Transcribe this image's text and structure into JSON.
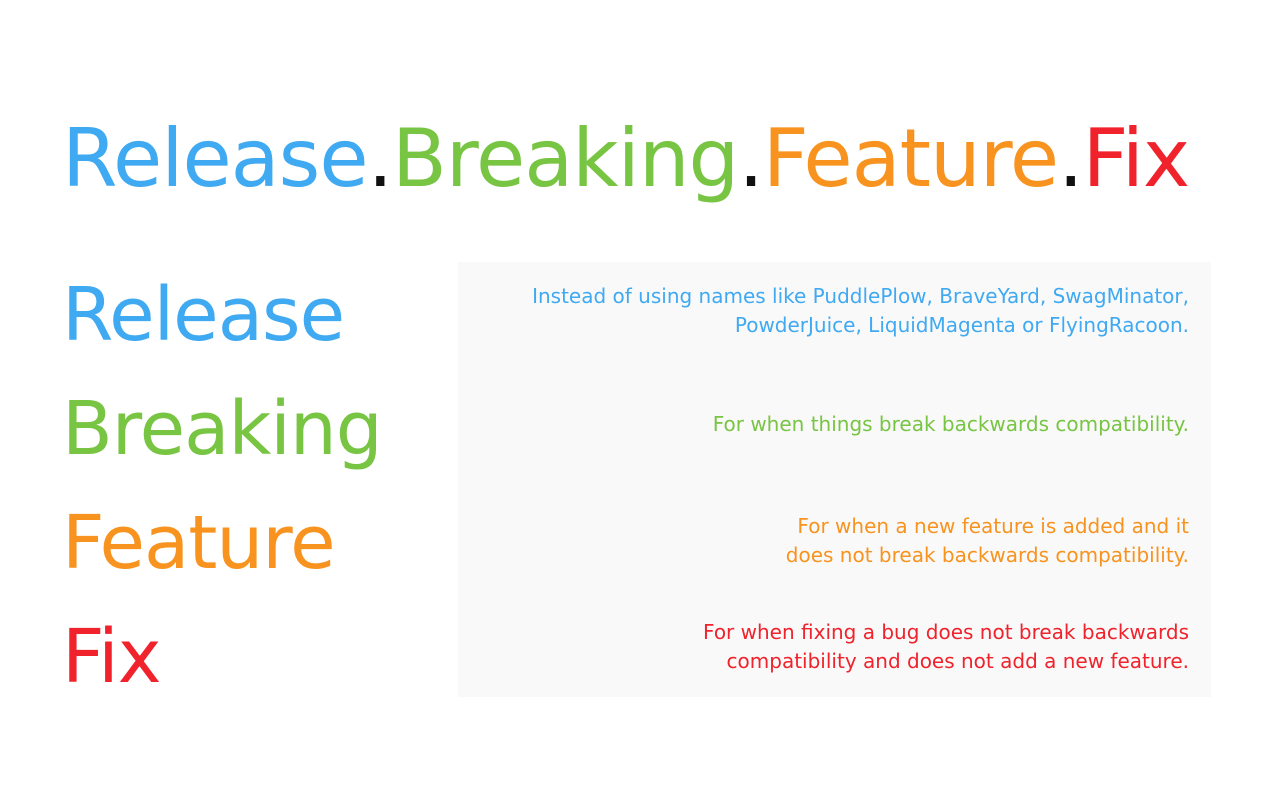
{
  "colors": {
    "release": "#3fa9f1",
    "breaking": "#78c443",
    "feature": "#f7931e",
    "fix": "#f0222c",
    "dot": "#111111"
  },
  "headline": {
    "release": "Release",
    "dot1": ".",
    "breaking": "Breaking",
    "dot2": ".",
    "feature": "Feature",
    "dot3": ".",
    "fix": "Fix"
  },
  "terms": [
    {
      "word": "Release",
      "description_lines": [
        "Instead of using names like PuddlePlow, BraveYard, SwagMinator,",
        "PowderJuice, LiquidMagenta or FlyingRacoon."
      ]
    },
    {
      "word": "Breaking",
      "description_lines": [
        "For when things break backwards compatibility."
      ]
    },
    {
      "word": "Feature",
      "description_lines": [
        "For when a new feature is added and it",
        "does not break backwards compatibility."
      ]
    },
    {
      "word": "Fix",
      "description_lines": [
        "For when fixing a bug does not break backwards",
        "compatibility and does not add a new feature."
      ]
    }
  ]
}
